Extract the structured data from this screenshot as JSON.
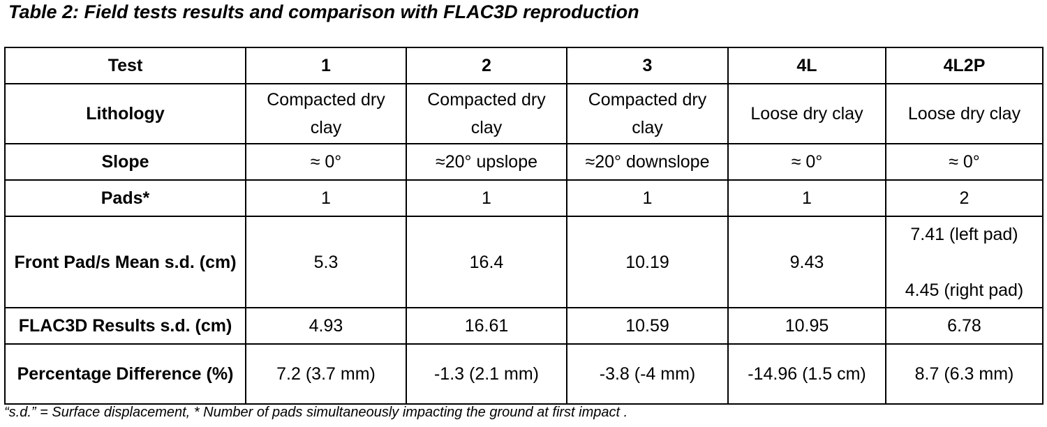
{
  "caption": "Table 2: Field tests results and comparison with FLAC3D reproduction",
  "table": {
    "header": {
      "label": "Test",
      "cols": [
        "1",
        "2",
        "3",
        "4L",
        "4L2P"
      ]
    },
    "lithology": {
      "label": "Lithology",
      "cells": [
        "Compacted dry clay",
        "Compacted dry clay",
        "Compacted dry clay",
        "Loose dry clay",
        "Loose dry clay"
      ]
    },
    "slope": {
      "label": "Slope",
      "cells": [
        "≈ 0°",
        "≈20° upslope",
        "≈20° downslope",
        "≈ 0°",
        "≈ 0°"
      ]
    },
    "pads": {
      "label": "Pads*",
      "cells": [
        "1",
        "1",
        "1",
        "1",
        "2"
      ]
    },
    "front_pad": {
      "label": "Front Pad/s Mean s.d. (cm)",
      "cells": [
        "5.3",
        "16.4",
        "10.19",
        "9.43"
      ],
      "last_left": "7.41 (left pad)",
      "last_right": "4.45 (right pad)"
    },
    "flac": {
      "label": "FLAC3D Results s.d. (cm)",
      "cells": [
        "4.93",
        "16.61",
        "10.59",
        "10.95",
        "6.78"
      ]
    },
    "pct": {
      "label": "Percentage Difference (%)",
      "cells": [
        "7.2 (3.7 mm)",
        "-1.3 (2.1 mm)",
        "-3.8 (-4 mm)",
        "-14.96 (1.5 cm)",
        "8.7 (6.3 mm)"
      ]
    }
  },
  "footnote": "“s.d.” = Surface displacement, * Number of pads simultaneously impacting the ground at first impact ."
}
